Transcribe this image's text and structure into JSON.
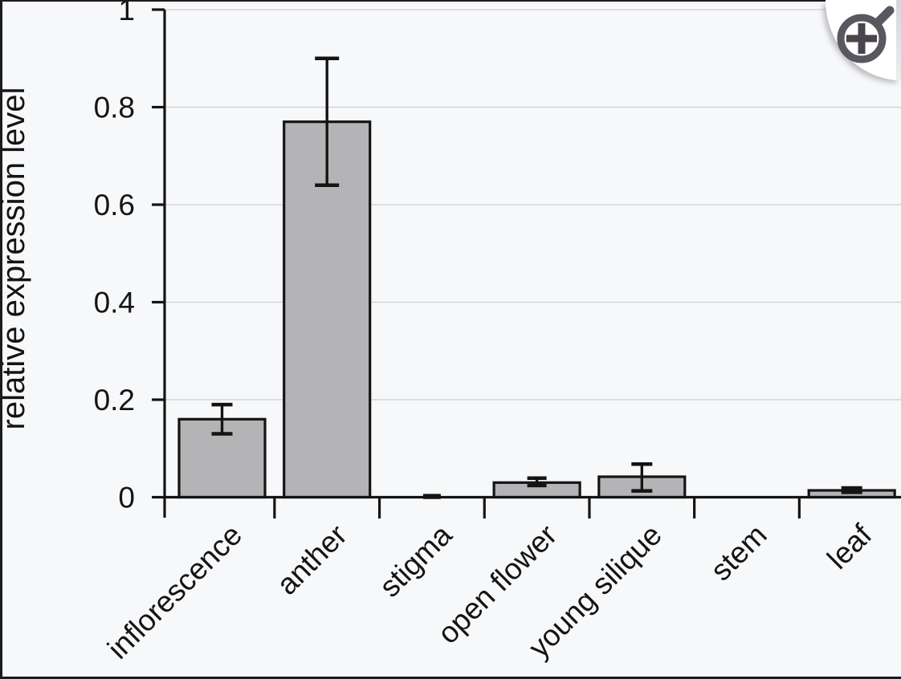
{
  "colors": {
    "background": "#f7f8fa",
    "frame_border": "#1b1b1e",
    "bar_fill": "#b4b4b6",
    "bar_edge": "#141414",
    "grid": "#ccd0d4",
    "axis": "#141414",
    "icon": "#5b5760",
    "icon_plus": "#49444d",
    "badge": "#ffffff",
    "badge_edge": "#d5d5d9"
  },
  "ui": {
    "zoom_badge": {
      "icon": "zoom-in-magnifier",
      "action": "magnify-figure"
    }
  },
  "chart_data": {
    "type": "bar",
    "title": "",
    "xlabel": "",
    "ylabel": "relative expression level",
    "ylim": [
      0,
      1
    ],
    "yticks": [
      0,
      0.2,
      0.4,
      0.6,
      0.8,
      1
    ],
    "ytick_labels": [
      "0",
      "0.2",
      "0.4",
      "0.6",
      "0.8",
      "1"
    ],
    "grid": true,
    "legend": "none",
    "categories": [
      "inflorescence",
      "anther",
      "stigma",
      "open flower",
      "young silique",
      "stem",
      "leaf"
    ],
    "values": [
      0.16,
      0.77,
      0.001,
      0.03,
      0.042,
      0,
      0.014
    ],
    "error_low": [
      0.13,
      0.64,
      0,
      0.024,
      0.013,
      null,
      0.01
    ],
    "error_high": [
      0.19,
      0.9,
      0.003,
      0.039,
      0.068,
      null,
      0.019
    ],
    "x_tick_style": "between-categories",
    "xlabel_rotation_deg": 45
  }
}
